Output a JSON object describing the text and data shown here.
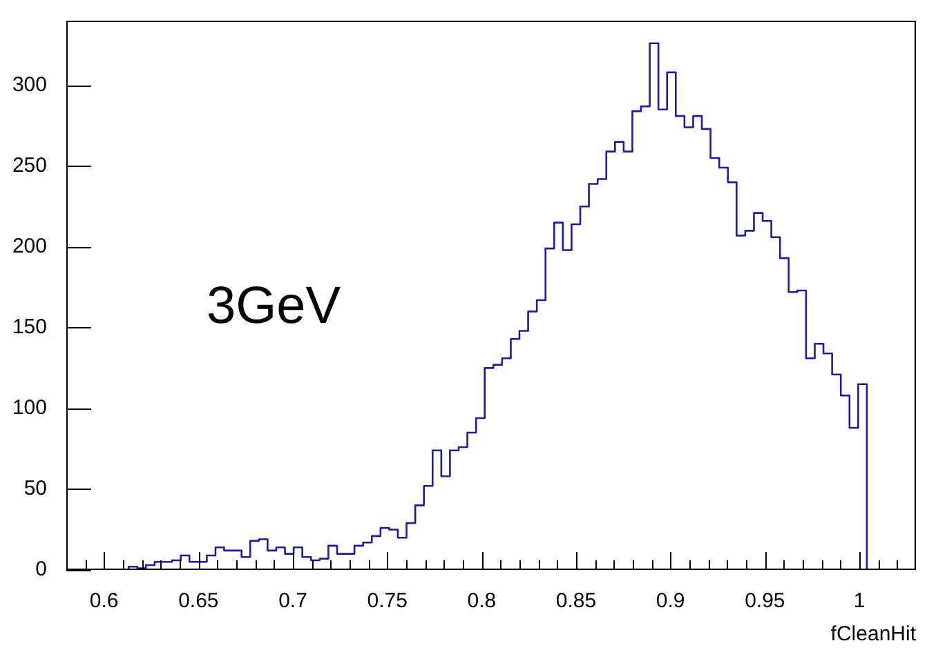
{
  "chart_data": {
    "type": "histogram",
    "xlabel": "fCleanHit",
    "annotations": [
      "3GeV"
    ],
    "color": "#1c1ca0",
    "bins": [
      0.613,
      0.6176,
      0.6222,
      0.6268,
      0.6314,
      0.636,
      0.6406,
      0.6452,
      0.6498,
      0.6544,
      0.659,
      0.6636,
      0.6682,
      0.6728,
      0.6774,
      0.682,
      0.6866,
      0.6912,
      0.6958,
      0.7004,
      0.705,
      0.7096,
      0.7142,
      0.7188,
      0.7234,
      0.728,
      0.7326,
      0.7372,
      0.7418,
      0.7464,
      0.751,
      0.7556,
      0.7602,
      0.7648,
      0.7694,
      0.774,
      0.7786,
      0.7832,
      0.7878,
      0.7924,
      0.797,
      0.8016,
      0.8062,
      0.8108,
      0.8154,
      0.82,
      0.8246,
      0.8292,
      0.8338,
      0.8384,
      0.843,
      0.8476,
      0.8522,
      0.8568,
      0.8614,
      0.866,
      0.8706,
      0.8752,
      0.8798,
      0.8844,
      0.889,
      0.8936,
      0.8982,
      0.9028,
      0.9074,
      0.912,
      0.9166,
      0.9212,
      0.9258,
      0.9304,
      0.935,
      0.9396,
      0.9442,
      0.9488,
      0.9534,
      0.958,
      0.9626,
      0.9672,
      0.9718,
      0.9764,
      0.981,
      0.9856,
      0.9902,
      0.9948,
      0.9994,
      1.004
    ],
    "values": [
      2,
      1,
      3,
      5,
      5,
      6,
      9,
      5,
      5,
      9,
      14,
      12,
      12,
      8,
      18,
      19,
      12,
      14,
      10,
      14,
      8,
      6,
      7,
      15,
      10,
      10,
      15,
      17,
      21,
      26,
      25,
      20,
      29,
      40,
      52,
      74,
      58,
      74,
      76,
      85,
      94,
      125,
      127,
      131,
      143,
      148,
      160,
      167,
      199,
      215,
      198,
      214,
      225,
      239,
      242,
      259,
      265,
      259,
      284,
      287,
      326,
      285,
      308,
      281,
      274,
      281,
      273,
      255,
      249,
      240,
      207,
      210,
      221,
      216,
      206,
      193,
      172,
      173,
      131,
      140,
      134,
      121,
      108,
      88,
      115
    ],
    "xlim": [
      0.58,
      1.03
    ],
    "xticks": [
      {
        "value": 0.59,
        "label": null
      },
      0.6,
      {
        "value": 0.61,
        "label": null
      },
      {
        "value": 0.62,
        "label": null
      },
      {
        "value": 0.63,
        "label": null
      },
      {
        "value": 0.64,
        "label": null
      },
      0.65,
      {
        "value": 0.66,
        "label": null
      },
      {
        "value": 0.67,
        "label": null
      },
      {
        "value": 0.68,
        "label": null
      },
      {
        "value": 0.69,
        "label": null
      },
      0.7,
      {
        "value": 0.71,
        "label": null
      },
      {
        "value": 0.72,
        "label": null
      },
      {
        "value": 0.73,
        "label": null
      },
      {
        "value": 0.74,
        "label": null
      },
      0.75,
      {
        "value": 0.76,
        "label": null
      },
      {
        "value": 0.77,
        "label": null
      },
      {
        "value": 0.78,
        "label": null
      },
      {
        "value": 0.79,
        "label": null
      },
      0.8,
      {
        "value": 0.81,
        "label": null
      },
      {
        "value": 0.82,
        "label": null
      },
      {
        "value": 0.83,
        "label": null
      },
      {
        "value": 0.84,
        "label": null
      },
      0.85,
      {
        "value": 0.86,
        "label": null
      },
      {
        "value": 0.87,
        "label": null
      },
      {
        "value": 0.88,
        "label": null
      },
      {
        "value": 0.89,
        "label": null
      },
      0.9,
      {
        "value": 0.91,
        "label": null
      },
      {
        "value": 0.92,
        "label": null
      },
      {
        "value": 0.93,
        "label": null
      },
      {
        "value": 0.94,
        "label": null
      },
      0.95,
      {
        "value": 0.96,
        "label": null
      },
      {
        "value": 0.97,
        "label": null
      },
      {
        "value": 0.98,
        "label": null
      },
      {
        "value": 0.99,
        "label": null
      },
      1,
      {
        "value": 1.01,
        "label": null
      },
      {
        "value": 1.02,
        "label": null
      }
    ],
    "ylim": [
      0,
      340
    ],
    "yticks": [
      0,
      50,
      100,
      150,
      200,
      250,
      300
    ],
    "grid": false,
    "legend": false
  }
}
